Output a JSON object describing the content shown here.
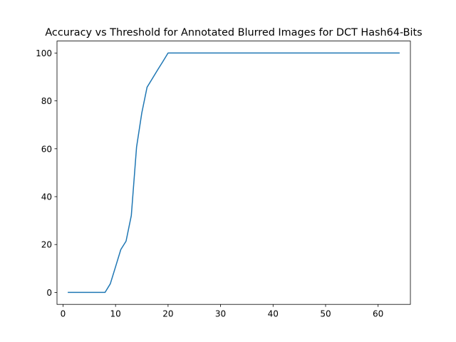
{
  "chart_data": {
    "type": "line",
    "title": "Accuracy vs Threshold for Annotated Blurred Images for DCT Hash64-Bits",
    "xlabel": "",
    "ylabel": "",
    "xlim": [
      -1.15,
      66.15
    ],
    "ylim": [
      -5,
      105
    ],
    "xticks": [
      0,
      10,
      20,
      30,
      40,
      50,
      60
    ],
    "yticks": [
      0,
      20,
      40,
      60,
      80,
      100
    ],
    "grid": false,
    "series": [
      {
        "color": "#1f77b4",
        "x": [
          1,
          2,
          3,
          4,
          5,
          6,
          7,
          8,
          9,
          10,
          11,
          12,
          13,
          14,
          15,
          16,
          17,
          18,
          19,
          20,
          21,
          22,
          23,
          24,
          25,
          26,
          27,
          28,
          29,
          30,
          31,
          32,
          33,
          34,
          35,
          36,
          37,
          38,
          39,
          40,
          41,
          42,
          43,
          44,
          45,
          46,
          47,
          48,
          49,
          50,
          51,
          52,
          53,
          54,
          55,
          56,
          57,
          58,
          59,
          60,
          61,
          62,
          63,
          64
        ],
        "y": [
          0,
          0,
          0,
          0,
          0,
          0,
          0,
          0,
          3.6,
          10.7,
          17.9,
          21.4,
          32.1,
          60.7,
          75,
          85.7,
          89.3,
          92.9,
          96.4,
          100,
          100,
          100,
          100,
          100,
          100,
          100,
          100,
          100,
          100,
          100,
          100,
          100,
          100,
          100,
          100,
          100,
          100,
          100,
          100,
          100,
          100,
          100,
          100,
          100,
          100,
          100,
          100,
          100,
          100,
          100,
          100,
          100,
          100,
          100,
          100,
          100,
          100,
          100,
          100,
          100,
          100,
          100,
          100,
          100
        ]
      }
    ]
  }
}
